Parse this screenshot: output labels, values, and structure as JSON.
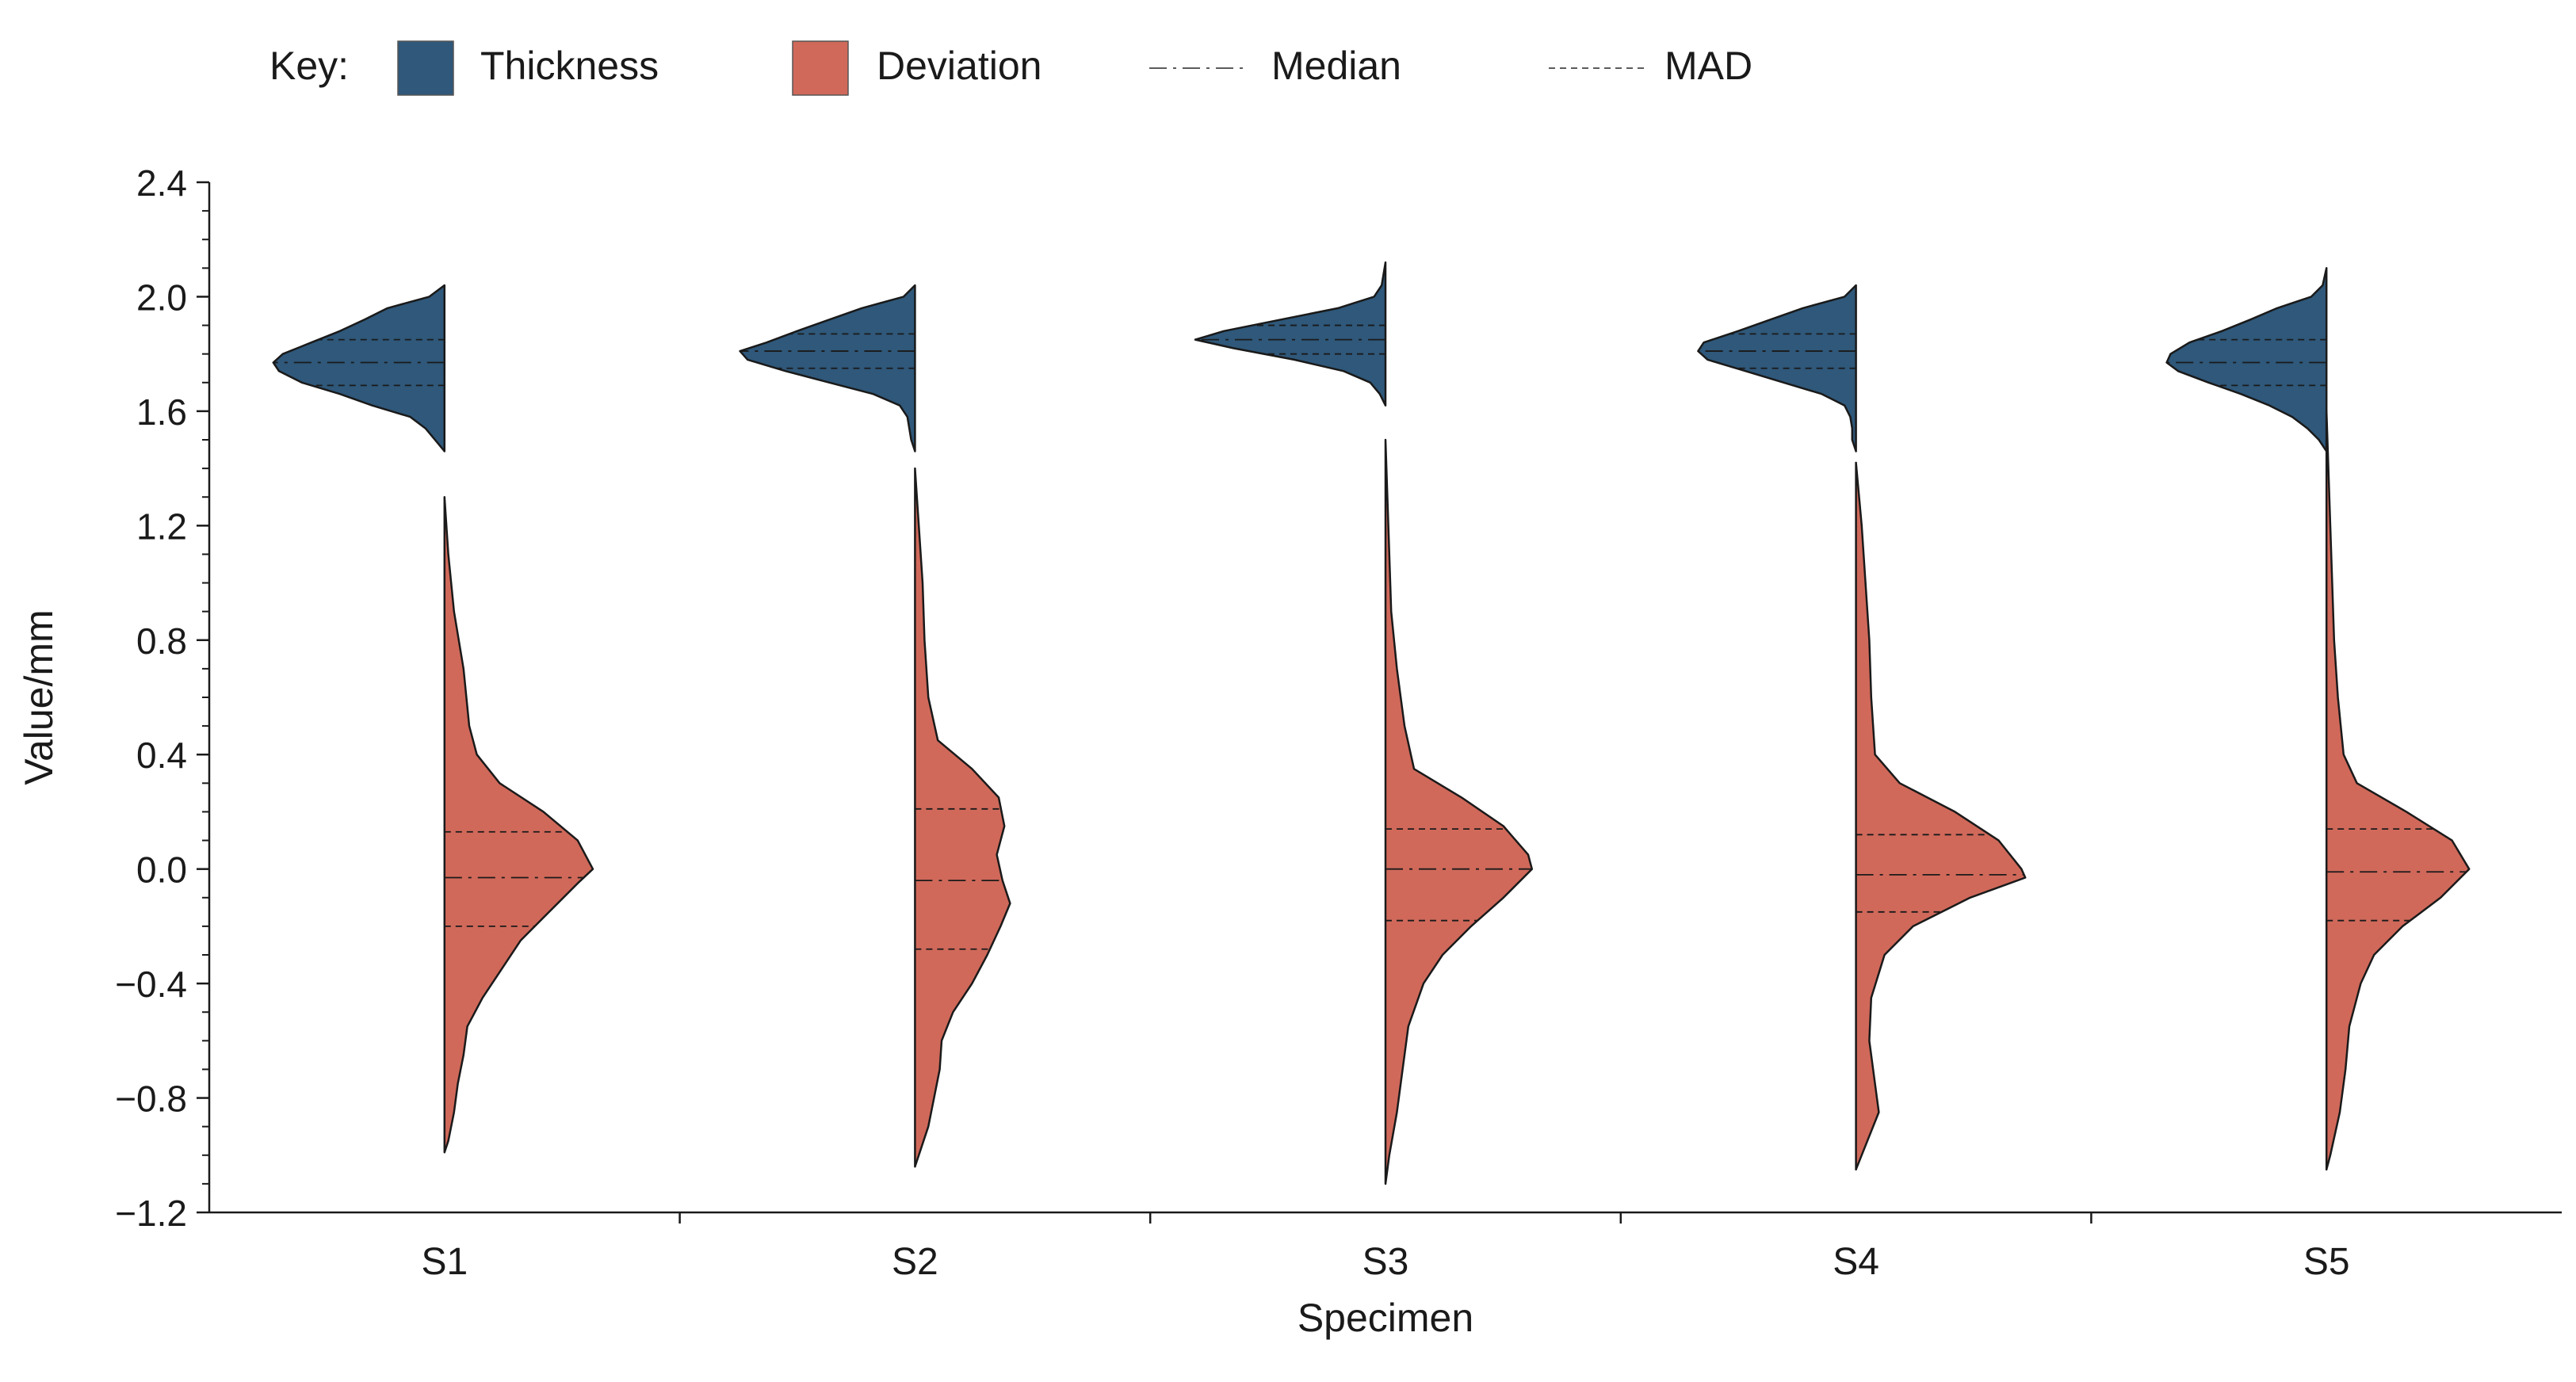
{
  "chart_data": {
    "type": "split-violin",
    "xlabel": "Specimen",
    "ylabel": "Value/mm",
    "ylim": [
      -1.2,
      2.4
    ],
    "yticks": [
      {
        "value": 2.4,
        "label": "2.4"
      },
      {
        "value": 2.0,
        "label": "2.0"
      },
      {
        "value": 1.6,
        "label": "1.6"
      },
      {
        "value": 1.2,
        "label": "1.2"
      },
      {
        "value": 0.8,
        "label": "0.8"
      },
      {
        "value": 0.4,
        "label": "0.4"
      },
      {
        "value": 0.0,
        "label": "0.0"
      },
      {
        "value": -0.4,
        "label": "−0.4"
      },
      {
        "value": -0.8,
        "label": "−0.8"
      },
      {
        "value": -1.2,
        "label": "−1.2"
      }
    ],
    "categories": [
      "S1",
      "S2",
      "S3",
      "S4",
      "S5"
    ],
    "legend": {
      "title": "Key:",
      "items": [
        {
          "label": "Thickness",
          "kind": "patch",
          "series": "thickness"
        },
        {
          "label": "Deviation",
          "kind": "patch",
          "series": "deviation"
        },
        {
          "label": "Median",
          "kind": "line",
          "style": "dashdot"
        },
        {
          "label": "MAD",
          "kind": "line",
          "style": "dashed"
        }
      ]
    },
    "series": [
      {
        "name": "Thickness",
        "key": "thickness",
        "side": "left",
        "color": "#2f587a",
        "stats": [
          {
            "category": "S1",
            "median": 1.77,
            "mad_low": 1.69,
            "mad_high": 1.85
          },
          {
            "category": "S2",
            "median": 1.81,
            "mad_low": 1.75,
            "mad_high": 1.87
          },
          {
            "category": "S3",
            "median": 1.85,
            "mad_low": 1.8,
            "mad_high": 1.9
          },
          {
            "category": "S4",
            "median": 1.81,
            "mad_low": 1.75,
            "mad_high": 1.87
          },
          {
            "category": "S5",
            "median": 1.77,
            "mad_low": 1.69,
            "mad_high": 1.85
          }
        ],
        "profiles": [
          {
            "category": "S1",
            "y": [
              2.04,
              2.0,
              1.96,
              1.92,
              1.88,
              1.84,
              1.8,
              1.77,
              1.74,
              1.7,
              1.66,
              1.62,
              1.58,
              1.54,
              1.5,
              1.46
            ],
            "w": [
              0.0,
              0.08,
              0.3,
              0.42,
              0.55,
              0.7,
              0.85,
              0.9,
              0.87,
              0.75,
              0.55,
              0.38,
              0.18,
              0.1,
              0.05,
              0.0
            ]
          },
          {
            "category": "S2",
            "y": [
              2.04,
              2.0,
              1.96,
              1.92,
              1.88,
              1.84,
              1.81,
              1.78,
              1.74,
              1.7,
              1.66,
              1.62,
              1.58,
              1.54,
              1.5,
              1.46
            ],
            "w": [
              0.0,
              0.06,
              0.28,
              0.45,
              0.62,
              0.78,
              0.92,
              0.88,
              0.68,
              0.45,
              0.22,
              0.08,
              0.04,
              0.03,
              0.02,
              0.0
            ]
          },
          {
            "category": "S3",
            "y": [
              2.12,
              2.08,
              2.04,
              2.0,
              1.96,
              1.92,
              1.88,
              1.85,
              1.82,
              1.78,
              1.74,
              1.7,
              1.66,
              1.62
            ],
            "w": [
              0.0,
              0.01,
              0.02,
              0.06,
              0.25,
              0.55,
              0.85,
              1.0,
              0.8,
              0.48,
              0.22,
              0.08,
              0.03,
              0.0
            ]
          },
          {
            "category": "S4",
            "y": [
              2.04,
              2.0,
              1.96,
              1.92,
              1.88,
              1.84,
              1.81,
              1.78,
              1.74,
              1.7,
              1.66,
              1.62,
              1.58,
              1.54,
              1.5,
              1.46
            ],
            "w": [
              0.0,
              0.06,
              0.28,
              0.45,
              0.62,
              0.8,
              0.83,
              0.78,
              0.58,
              0.38,
              0.18,
              0.06,
              0.03,
              0.02,
              0.02,
              0.0
            ]
          },
          {
            "category": "S5",
            "y": [
              2.1,
              2.04,
              2.0,
              1.96,
              1.92,
              1.88,
              1.84,
              1.8,
              1.77,
              1.74,
              1.7,
              1.66,
              1.62,
              1.58,
              1.54,
              1.5,
              1.46
            ],
            "w": [
              0.0,
              0.02,
              0.08,
              0.26,
              0.4,
              0.55,
              0.72,
              0.82,
              0.84,
              0.78,
              0.62,
              0.45,
              0.3,
              0.18,
              0.1,
              0.04,
              0.0
            ]
          }
        ]
      },
      {
        "name": "Deviation",
        "key": "deviation",
        "side": "right",
        "color": "#d0695a",
        "stats": [
          {
            "category": "S1",
            "median": -0.03,
            "mad_low": -0.2,
            "mad_high": 0.13
          },
          {
            "category": "S2",
            "median": -0.04,
            "mad_low": -0.28,
            "mad_high": 0.21
          },
          {
            "category": "S3",
            "median": 0.0,
            "mad_low": -0.18,
            "mad_high": 0.14
          },
          {
            "category": "S4",
            "median": -0.02,
            "mad_low": -0.15,
            "mad_high": 0.12
          },
          {
            "category": "S5",
            "median": -0.01,
            "mad_low": -0.18,
            "mad_high": 0.14
          }
        ],
        "profiles": [
          {
            "category": "S1",
            "y": [
              1.3,
              1.1,
              0.9,
              0.7,
              0.5,
              0.4,
              0.3,
              0.2,
              0.1,
              0.0,
              -0.05,
              -0.15,
              -0.25,
              -0.35,
              -0.45,
              -0.55,
              -0.65,
              -0.75,
              -0.85,
              -0.95,
              -0.99
            ],
            "w": [
              0.0,
              0.02,
              0.05,
              0.1,
              0.13,
              0.17,
              0.29,
              0.52,
              0.7,
              0.78,
              0.7,
              0.55,
              0.4,
              0.3,
              0.2,
              0.12,
              0.1,
              0.07,
              0.05,
              0.02,
              0.0
            ]
          },
          {
            "category": "S2",
            "y": [
              1.4,
              1.2,
              1.0,
              0.8,
              0.6,
              0.45,
              0.35,
              0.25,
              0.15,
              0.05,
              -0.04,
              -0.12,
              -0.2,
              -0.3,
              -0.4,
              -0.5,
              -0.6,
              -0.7,
              -0.8,
              -0.9,
              -1.0,
              -1.04
            ],
            "w": [
              0.0,
              0.02,
              0.04,
              0.05,
              0.07,
              0.12,
              0.3,
              0.44,
              0.47,
              0.43,
              0.46,
              0.5,
              0.45,
              0.38,
              0.3,
              0.2,
              0.14,
              0.13,
              0.1,
              0.07,
              0.02,
              0.0
            ]
          },
          {
            "category": "S3",
            "y": [
              1.5,
              1.3,
              1.1,
              0.9,
              0.7,
              0.5,
              0.35,
              0.25,
              0.15,
              0.05,
              0.0,
              -0.1,
              -0.2,
              -0.3,
              -0.4,
              -0.55,
              -0.7,
              -0.85,
              -1.0,
              -1.1
            ],
            "w": [
              0.0,
              0.01,
              0.02,
              0.03,
              0.06,
              0.1,
              0.15,
              0.4,
              0.62,
              0.75,
              0.77,
              0.62,
              0.45,
              0.3,
              0.2,
              0.12,
              0.09,
              0.06,
              0.02,
              0.0
            ]
          },
          {
            "category": "S4",
            "y": [
              1.42,
              1.2,
              1.0,
              0.8,
              0.6,
              0.4,
              0.3,
              0.2,
              0.1,
              0.0,
              -0.03,
              -0.1,
              -0.2,
              -0.3,
              -0.45,
              -0.6,
              -0.75,
              -0.85,
              -0.95,
              -1.05
            ],
            "w": [
              0.0,
              0.03,
              0.05,
              0.07,
              0.08,
              0.1,
              0.23,
              0.52,
              0.75,
              0.87,
              0.89,
              0.6,
              0.3,
              0.15,
              0.08,
              0.07,
              0.1,
              0.12,
              0.06,
              0.0
            ]
          },
          {
            "category": "S5",
            "y": [
              1.6,
              1.4,
              1.2,
              1.0,
              0.8,
              0.6,
              0.4,
              0.3,
              0.2,
              0.1,
              0.0,
              -0.1,
              -0.2,
              -0.3,
              -0.4,
              -0.55,
              -0.7,
              -0.85,
              -1.0,
              -1.05
            ],
            "w": [
              0.0,
              0.01,
              0.02,
              0.03,
              0.04,
              0.06,
              0.09,
              0.16,
              0.42,
              0.66,
              0.75,
              0.6,
              0.4,
              0.25,
              0.18,
              0.12,
              0.1,
              0.07,
              0.02,
              0.0
            ]
          }
        ]
      }
    ]
  }
}
